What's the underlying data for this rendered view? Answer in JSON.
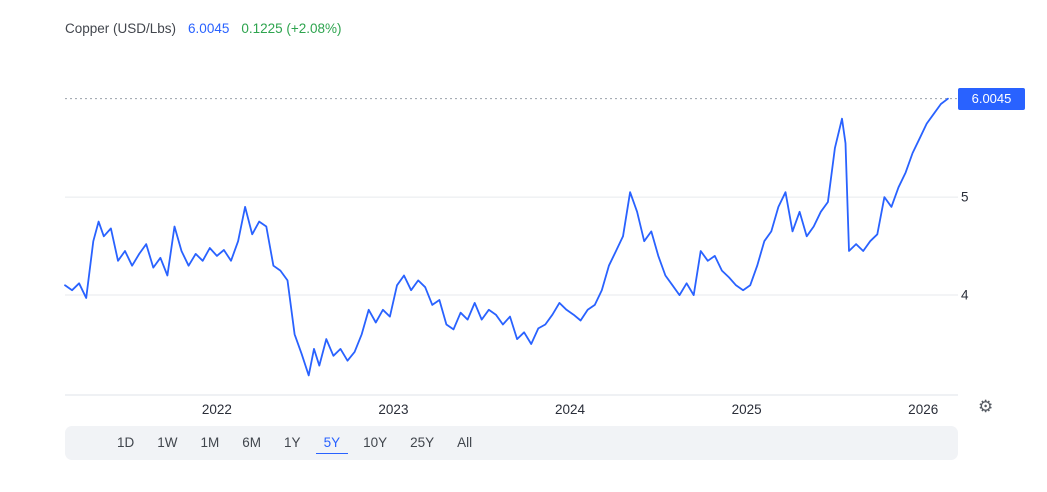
{
  "header": {
    "title": "Copper (USD/Lbs)",
    "price": "6.0045",
    "change": "0.1225 (+2.08%)"
  },
  "colors": {
    "line": "#2962ff",
    "price_text": "#2962ff",
    "change_positive": "#2da44e",
    "price_tag_bg": "#2962ff",
    "gridline": "#e7eaed",
    "axis_text": "#2a2e39"
  },
  "icons": {
    "settings": "⚙"
  },
  "toolbar": {
    "active": "5Y",
    "ranges": [
      "1D",
      "1W",
      "1M",
      "6M",
      "1Y",
      "5Y",
      "10Y",
      "25Y",
      "All"
    ]
  },
  "chart_data": {
    "type": "line",
    "title": "Copper (USD/Lbs)",
    "instrument": "Copper",
    "unit": "USD/Lbs",
    "current_price": 6.0045,
    "current_price_label": "6.0045",
    "change_abs": 0.1225,
    "change_pct": "+2.08%",
    "selected_range": "5Y",
    "x_ticks": [
      2022,
      2023,
      2024,
      2025,
      2026
    ],
    "y_ticks": [
      4,
      5
    ],
    "xlim": [
      2021.14,
      2026.18
    ],
    "ylim": [
      2.98,
      6.45
    ],
    "grid": "horizontal-only",
    "legend": "none",
    "line_color": "#2962ff",
    "series": [
      {
        "name": "Copper USD/Lbs",
        "x": [
          2021.14,
          2021.18,
          2021.22,
          2021.26,
          2021.3,
          2021.33,
          2021.36,
          2021.4,
          2021.44,
          2021.48,
          2021.52,
          2021.56,
          2021.6,
          2021.64,
          2021.68,
          2021.72,
          2021.76,
          2021.8,
          2021.84,
          2021.88,
          2021.92,
          2021.96,
          2022.0,
          2022.04,
          2022.08,
          2022.12,
          2022.16,
          2022.2,
          2022.24,
          2022.28,
          2022.32,
          2022.36,
          2022.4,
          2022.44,
          2022.48,
          2022.52,
          2022.55,
          2022.58,
          2022.62,
          2022.66,
          2022.7,
          2022.74,
          2022.78,
          2022.82,
          2022.86,
          2022.9,
          2022.94,
          2022.98,
          2023.02,
          2023.06,
          2023.1,
          2023.14,
          2023.18,
          2023.22,
          2023.26,
          2023.3,
          2023.34,
          2023.38,
          2023.42,
          2023.46,
          2023.5,
          2023.54,
          2023.58,
          2023.62,
          2023.66,
          2023.7,
          2023.74,
          2023.78,
          2023.82,
          2023.86,
          2023.9,
          2023.94,
          2023.98,
          2024.02,
          2024.06,
          2024.1,
          2024.14,
          2024.18,
          2024.22,
          2024.26,
          2024.3,
          2024.34,
          2024.38,
          2024.42,
          2024.46,
          2024.5,
          2024.54,
          2024.58,
          2024.62,
          2024.66,
          2024.7,
          2024.74,
          2024.78,
          2024.82,
          2024.86,
          2024.9,
          2024.94,
          2024.98,
          2025.02,
          2025.06,
          2025.1,
          2025.14,
          2025.18,
          2025.22,
          2025.26,
          2025.3,
          2025.34,
          2025.38,
          2025.42,
          2025.46,
          2025.5,
          2025.54,
          2025.56,
          2025.58,
          2025.62,
          2025.66,
          2025.7,
          2025.74,
          2025.78,
          2025.82,
          2025.86,
          2025.9,
          2025.94,
          2025.98,
          2026.02,
          2026.06,
          2026.1,
          2026.14
        ],
        "y": [
          4.1,
          4.05,
          4.12,
          3.97,
          4.55,
          4.75,
          4.6,
          4.68,
          4.35,
          4.45,
          4.3,
          4.42,
          4.52,
          4.28,
          4.38,
          4.2,
          4.7,
          4.45,
          4.3,
          4.42,
          4.35,
          4.48,
          4.4,
          4.46,
          4.35,
          4.55,
          4.9,
          4.62,
          4.75,
          4.7,
          4.3,
          4.25,
          4.15,
          3.6,
          3.4,
          3.18,
          3.45,
          3.28,
          3.55,
          3.38,
          3.45,
          3.33,
          3.42,
          3.6,
          3.85,
          3.72,
          3.85,
          3.78,
          4.1,
          4.2,
          4.05,
          4.15,
          4.08,
          3.9,
          3.95,
          3.7,
          3.65,
          3.82,
          3.75,
          3.92,
          3.75,
          3.85,
          3.8,
          3.7,
          3.78,
          3.55,
          3.62,
          3.5,
          3.66,
          3.7,
          3.8,
          3.92,
          3.85,
          3.8,
          3.74,
          3.85,
          3.9,
          4.05,
          4.3,
          4.45,
          4.6,
          5.05,
          4.85,
          4.55,
          4.65,
          4.4,
          4.2,
          4.1,
          4.0,
          4.12,
          4.0,
          4.45,
          4.35,
          4.4,
          4.25,
          4.18,
          4.1,
          4.05,
          4.1,
          4.3,
          4.55,
          4.65,
          4.9,
          5.05,
          4.65,
          4.85,
          4.6,
          4.7,
          4.85,
          4.95,
          5.5,
          5.8,
          5.55,
          4.45,
          4.52,
          4.45,
          4.55,
          4.62,
          5.0,
          4.9,
          5.1,
          5.25,
          5.45,
          5.6,
          5.75,
          5.85,
          5.95,
          6.0045
        ]
      }
    ]
  }
}
